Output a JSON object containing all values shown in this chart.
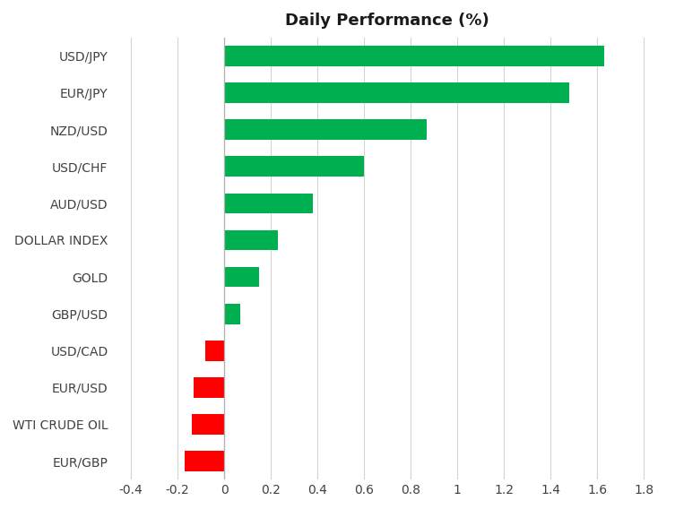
{
  "title": "Daily Performance (%)",
  "categories": [
    "USD/JPY",
    "EUR/JPY",
    "NZD/USD",
    "USD/CHF",
    "AUD/USD",
    "DOLLAR INDEX",
    "GOLD",
    "GBP/USD",
    "USD/CAD",
    "EUR/USD",
    "WTI CRUDE OIL",
    "EUR/GBP"
  ],
  "values": [
    1.63,
    1.48,
    0.87,
    0.6,
    0.38,
    0.23,
    0.15,
    0.07,
    -0.08,
    -0.13,
    -0.14,
    -0.17
  ],
  "positive_color": "#00b050",
  "negative_color": "#ff0000",
  "background_color": "#ffffff",
  "grid_color": "#d3d3d3",
  "title_fontsize": 13,
  "label_fontsize": 10,
  "tick_fontsize": 10,
  "xlim": [
    -0.48,
    1.88
  ],
  "xticks": [
    -0.4,
    -0.2,
    0.0,
    0.2,
    0.4,
    0.6,
    0.8,
    1.0,
    1.2,
    1.4,
    1.6,
    1.8
  ],
  "xtick_labels": [
    "-0.4",
    "-0.2",
    "0",
    "0.2",
    "0.4",
    "0.6",
    "0.8",
    "1",
    "1.2",
    "1.4",
    "1.6",
    "1.8"
  ],
  "bar_height": 0.55,
  "label_color": "#404040",
  "zero_line_color": "#b0b0b0"
}
